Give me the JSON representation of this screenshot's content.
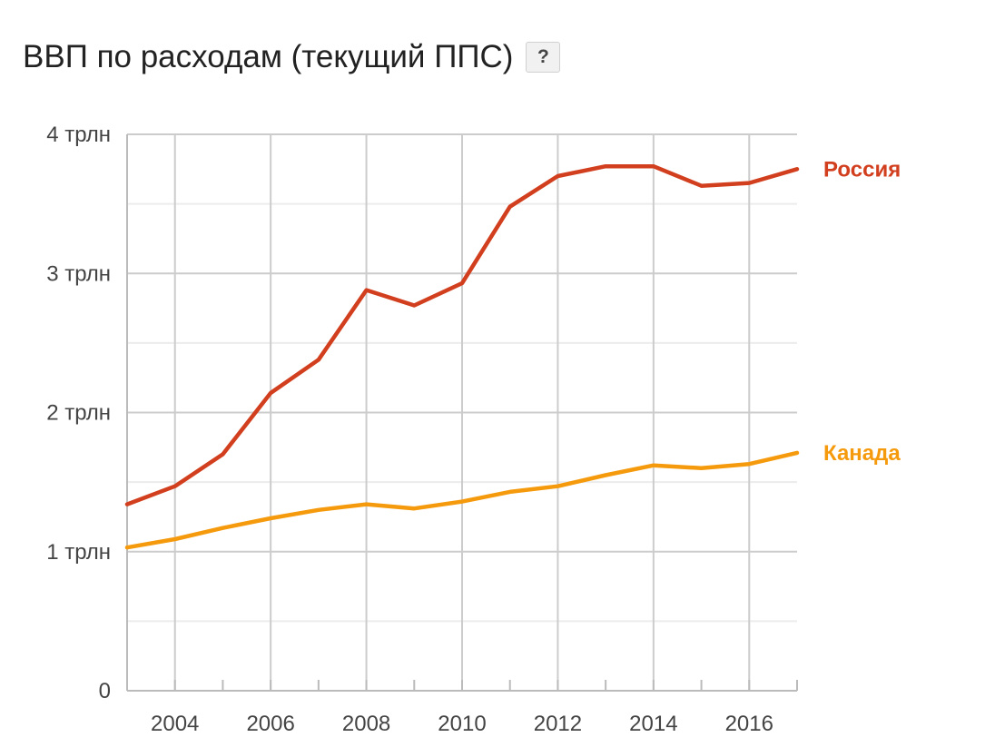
{
  "header": {
    "title": "ВВП по расходам (текущий ППС)",
    "help_label": "?"
  },
  "chart_data": {
    "type": "line",
    "title": "ВВП по расходам (текущий ППС)",
    "xlabel": "",
    "ylabel": "",
    "x": [
      2003,
      2004,
      2005,
      2006,
      2007,
      2008,
      2009,
      2010,
      2011,
      2012,
      2013,
      2014,
      2015,
      2016,
      2017
    ],
    "xlim": [
      2003,
      2017
    ],
    "ylim": [
      0,
      4
    ],
    "x_ticks": [
      2004,
      2006,
      2008,
      2010,
      2012,
      2014,
      2016
    ],
    "x_tick_labels": [
      "2004",
      "2006",
      "2008",
      "2010",
      "2012",
      "2014",
      "2016"
    ],
    "y_ticks": [
      0,
      1,
      2,
      3,
      4
    ],
    "y_tick_labels": [
      "0",
      "1 трлн",
      "2 трлн",
      "3 трлн",
      "4 трлн"
    ],
    "grid": true,
    "legend": "right, labels at line ends",
    "series": [
      {
        "name": "Россия",
        "color": "#d23f1e",
        "values": [
          1.34,
          1.47,
          1.7,
          2.14,
          2.38,
          2.88,
          2.77,
          2.93,
          3.48,
          3.7,
          3.77,
          3.77,
          3.63,
          3.65,
          3.75
        ]
      },
      {
        "name": "Канада",
        "color": "#f59a0c",
        "values": [
          1.03,
          1.09,
          1.17,
          1.24,
          1.3,
          1.34,
          1.31,
          1.36,
          1.43,
          1.47,
          1.55,
          1.62,
          1.6,
          1.63,
          1.71
        ]
      }
    ]
  }
}
